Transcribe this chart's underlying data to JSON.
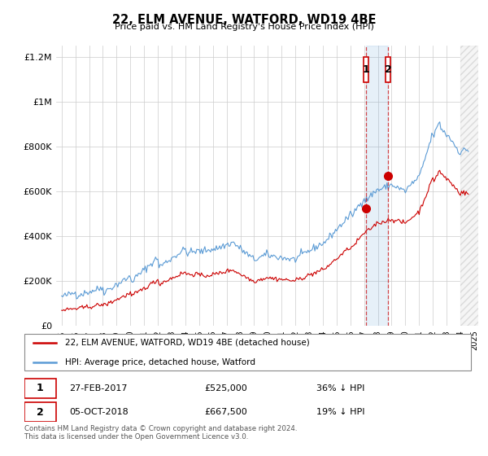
{
  "title": "22, ELM AVENUE, WATFORD, WD19 4BE",
  "subtitle": "Price paid vs. HM Land Registry's House Price Index (HPI)",
  "sale1_date": "27-FEB-2017",
  "sale1_price": 525000,
  "sale1_label": "36% ↓ HPI",
  "sale2_date": "05-OCT-2018",
  "sale2_price": 667500,
  "sale2_label": "19% ↓ HPI",
  "sale1_x": 2017.15,
  "sale2_x": 2018.75,
  "legend_line1": "22, ELM AVENUE, WATFORD, WD19 4BE (detached house)",
  "legend_line2": "HPI: Average price, detached house, Watford",
  "footer1": "Contains HM Land Registry data © Crown copyright and database right 2024.",
  "footer2": "This data is licensed under the Open Government Licence v3.0.",
  "red_color": "#cc0000",
  "blue_color": "#5b9bd5",
  "shade_color": "#ddeeff",
  "annotation_bg": "#ffffff",
  "annotation_border": "#cc0000",
  "ylim_max": 1250000,
  "xlim_min": 1994.6,
  "xlim_max": 2025.3
}
